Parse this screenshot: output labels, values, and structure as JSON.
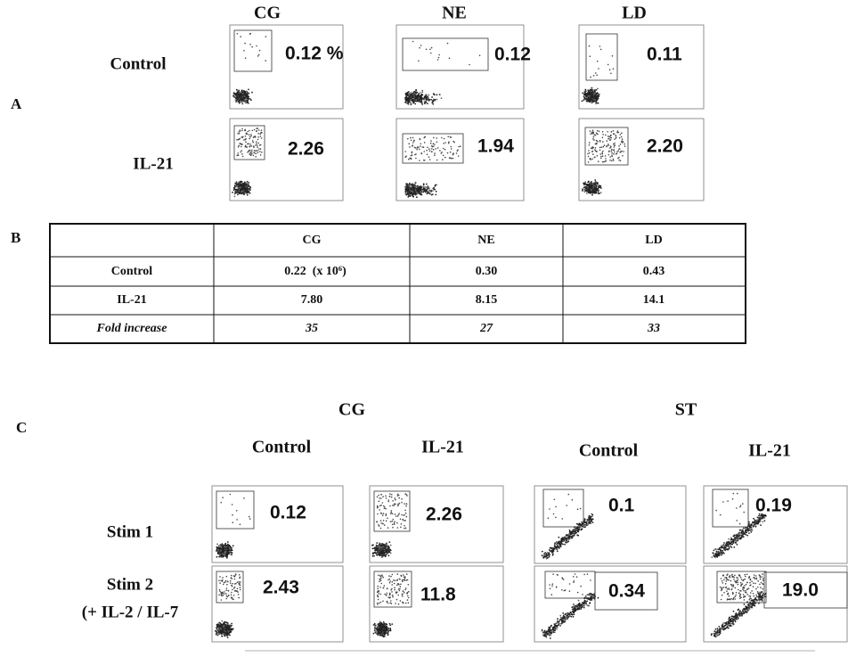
{
  "panel_a": {
    "label": "A",
    "columns": [
      "CG",
      "NE",
      "LD"
    ],
    "rows": [
      {
        "label": "Control",
        "values": [
          "0.12 %",
          "0.12",
          "0.11"
        ]
      },
      {
        "label": "IL-21",
        "values": [
          "2.26",
          "1.94",
          "2.20"
        ]
      }
    ]
  },
  "panel_b": {
    "label": "B",
    "table": {
      "header": [
        "CG",
        "NE",
        "LD"
      ],
      "rows": [
        [
          "Control",
          "0.22  (x 10⁶)",
          "0.30",
          "0.43"
        ],
        [
          "IL-21",
          "7.80",
          "8.15",
          "14.1"
        ],
        [
          "Fold increase",
          "35",
          "27",
          "33"
        ]
      ]
    }
  },
  "panel_c": {
    "label": "C",
    "groups": [
      "CG",
      "ST"
    ],
    "columns": [
      "Control",
      "IL-21",
      "Control",
      "IL-21"
    ],
    "rows": [
      {
        "label": [
          "Stim 1"
        ],
        "values": [
          "0.12",
          "2.26",
          "0.1",
          "0.19"
        ]
      },
      {
        "label": [
          "Stim 2",
          "(+ IL-2 / IL-7"
        ],
        "values": [
          "2.43",
          "11.8",
          "0.34",
          "19.0"
        ]
      }
    ]
  }
}
